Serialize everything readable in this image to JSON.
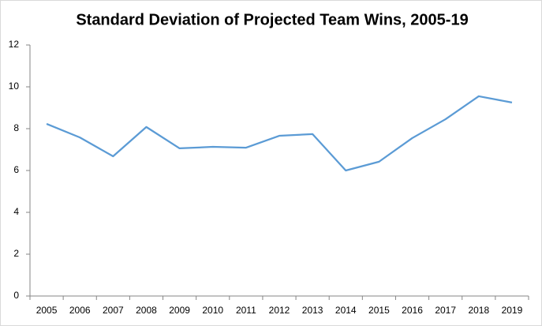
{
  "chart_data": {
    "type": "line",
    "title": "Standard Deviation of Projected Team Wins, 2005-19",
    "categories": [
      "2005",
      "2006",
      "2007",
      "2008",
      "2009",
      "2010",
      "2011",
      "2012",
      "2013",
      "2014",
      "2015",
      "2016",
      "2017",
      "2018",
      "2019"
    ],
    "values": [
      8.23,
      7.58,
      6.68,
      8.08,
      7.06,
      7.13,
      7.09,
      7.66,
      7.74,
      6.0,
      6.42,
      7.55,
      8.45,
      9.55,
      9.25
    ],
    "color": "#5b9bd5",
    "ylim": [
      0,
      12
    ],
    "yticks": [
      0,
      2,
      4,
      6,
      8,
      10,
      12
    ],
    "grid": false
  }
}
